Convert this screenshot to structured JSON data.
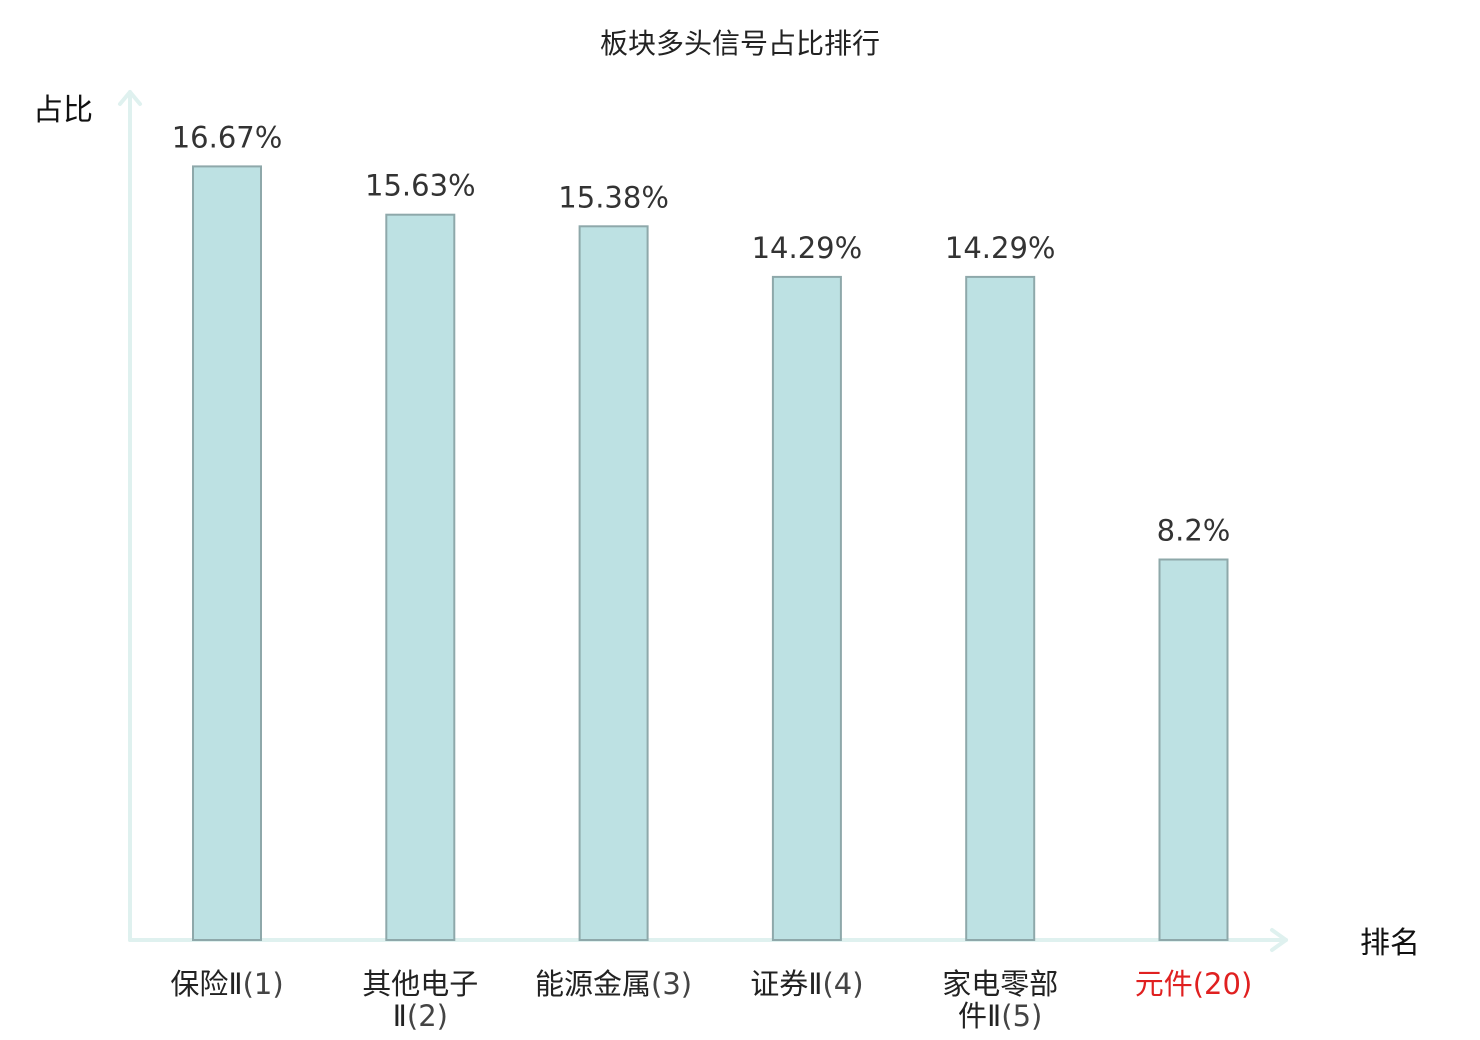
{
  "chart_data": {
    "type": "bar",
    "title": "板块多头信号占比排行",
    "ylabel": "占比",
    "xlabel": "排名",
    "ylim": [
      0,
      17.8
    ],
    "grid": false,
    "categories": [
      {
        "name_lines": [
          "保险Ⅱ"
        ],
        "rank": "(1)",
        "highlight": false
      },
      {
        "name_lines": [
          "其他电子",
          "Ⅱ"
        ],
        "rank": "(2)",
        "highlight": false
      },
      {
        "name_lines": [
          "能源金属"
        ],
        "rank": "(3)",
        "highlight": false
      },
      {
        "name_lines": [
          "证券Ⅱ"
        ],
        "rank": "(4)",
        "highlight": false
      },
      {
        "name_lines": [
          "家电零部",
          "件Ⅱ"
        ],
        "rank": "(5)",
        "highlight": false
      },
      {
        "name_lines": [
          "元件"
        ],
        "rank": "(20)",
        "highlight": true
      }
    ],
    "values": [
      16.67,
      15.63,
      15.38,
      14.29,
      14.29,
      8.2
    ],
    "value_labels": [
      "16.67%",
      "15.63%",
      "15.38%",
      "14.29%",
      "14.29%",
      "8.2%"
    ],
    "colors": {
      "bar_fill": "#bde1e3",
      "bar_stroke": "#8ea8aa",
      "axis": "#dff1ef",
      "highlight_label": "#e02020",
      "label": "#222222"
    }
  }
}
